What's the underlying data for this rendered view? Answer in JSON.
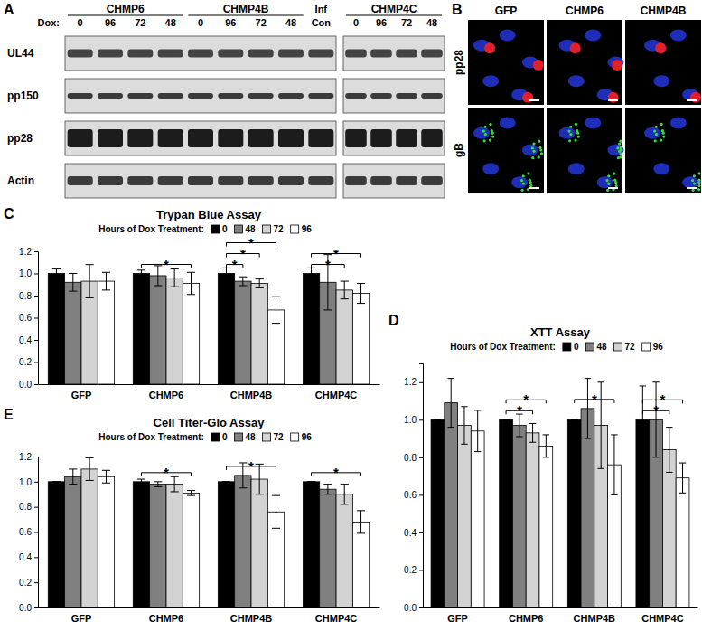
{
  "blot": {
    "panel": "A",
    "dox_label": "Dox:",
    "groups": [
      {
        "name": "CHMP6",
        "lanes": [
          "0",
          "96",
          "72",
          "48"
        ]
      },
      {
        "name": "CHMP4B",
        "lanes": [
          "0",
          "96",
          "72",
          "48"
        ]
      }
    ],
    "inf_con": [
      "Inf",
      "Con"
    ],
    "right_group": {
      "name": "CHMP4C",
      "lanes": [
        "0",
        "96",
        "72",
        "48"
      ]
    },
    "rows": [
      "UL44",
      "pp150",
      "pp28",
      "Actin"
    ]
  },
  "micrographs": {
    "panel": "B",
    "columns": [
      "GFP",
      "CHMP6",
      "CHMP4B"
    ],
    "rows": [
      "pp28",
      "gB"
    ]
  },
  "chart_data": [
    {
      "type": "bar",
      "panel": "C",
      "title": "Trypan Blue Assay",
      "legend_title": "Hours of Dox Treatment:",
      "legend": "top",
      "categories": [
        "GFP",
        "CHMP6",
        "CHMP4B",
        "CHMP4C"
      ],
      "series": [
        {
          "name": "0",
          "color": "#000000",
          "values": [
            1.0,
            1.0,
            1.0,
            1.0
          ],
          "errors": [
            0.04,
            0.03,
            0.05,
            0.05
          ]
        },
        {
          "name": "48",
          "color": "#808080",
          "values": [
            0.92,
            0.98,
            0.93,
            0.92
          ],
          "errors": [
            0.08,
            0.09,
            0.04,
            0.25
          ]
        },
        {
          "name": "72",
          "color": "#d3d3d3",
          "values": [
            0.93,
            0.96,
            0.91,
            0.85
          ],
          "errors": [
            0.15,
            0.08,
            0.04,
            0.08
          ]
        },
        {
          "name": "96",
          "color": "#ffffff",
          "values": [
            0.93,
            0.91,
            0.67,
            0.82
          ],
          "errors": [
            0.08,
            0.1,
            0.12,
            0.09
          ]
        }
      ],
      "ylim": [
        0,
        1.2
      ],
      "yticks": [
        {
          "value": 0,
          "label": "0.0"
        },
        {
          "value": 0.2,
          "label": "0.2"
        },
        {
          "value": 0.4,
          "label": "0.4"
        },
        {
          "value": 0.6,
          "label": "0.6"
        },
        {
          "value": 0.8,
          "label": "0.8"
        },
        {
          "value": 1,
          "label": "1.0"
        },
        {
          "value": 1.2,
          "label": "1.2"
        }
      ],
      "significance": [
        {
          "category": "CHMP6",
          "from": "0",
          "to": "96",
          "label": "*"
        },
        {
          "category": "CHMP4B",
          "from": "0",
          "to": "48",
          "label": "*"
        },
        {
          "category": "CHMP4B",
          "from": "0",
          "to": "72",
          "label": "*"
        },
        {
          "category": "CHMP4B",
          "from": "0",
          "to": "96",
          "label": "*"
        },
        {
          "category": "CHMP4C",
          "from": "0",
          "to": "72",
          "label": "*"
        },
        {
          "category": "CHMP4C",
          "from": "0",
          "to": "96",
          "label": "*"
        }
      ],
      "grid": false
    },
    {
      "type": "bar",
      "panel": "D",
      "title": "XTT Assay",
      "legend_title": "Hours of Dox Treatment:",
      "legend": "top",
      "categories": [
        "GFP",
        "CHMP6",
        "CHMP4B",
        "CHMP4C"
      ],
      "series": [
        {
          "name": "0",
          "color": "#000000",
          "values": [
            1.0,
            1.0,
            1.0,
            1.0
          ],
          "errors": [
            0.0,
            0.0,
            0.0,
            0.18
          ]
        },
        {
          "name": "48",
          "color": "#808080",
          "values": [
            1.09,
            0.97,
            1.06,
            1.0
          ],
          "errors": [
            0.13,
            0.06,
            0.16,
            0.2
          ]
        },
        {
          "name": "72",
          "color": "#d3d3d3",
          "values": [
            0.97,
            0.93,
            0.97,
            0.84
          ],
          "errors": [
            0.1,
            0.05,
            0.23,
            0.12
          ]
        },
        {
          "name": "96",
          "color": "#ffffff",
          "values": [
            0.94,
            0.86,
            0.76,
            0.69
          ],
          "errors": [
            0.11,
            0.06,
            0.16,
            0.08
          ]
        }
      ],
      "ylim": [
        0,
        1.3
      ],
      "yticks": [
        {
          "value": 0,
          "label": "0.0"
        },
        {
          "value": 0.2,
          "label": "0.2"
        },
        {
          "value": 0.4,
          "label": "0.4"
        },
        {
          "value": 0.6,
          "label": "0.6"
        },
        {
          "value": 0.8,
          "label": "0.8"
        },
        {
          "value": 1,
          "label": "1.0"
        },
        {
          "value": 1.2,
          "label": "1.2"
        }
      ],
      "significance": [
        {
          "category": "CHMP6",
          "from": "0",
          "to": "72",
          "label": "*"
        },
        {
          "category": "CHMP6",
          "from": "0",
          "to": "96",
          "label": "*"
        },
        {
          "category": "CHMP4B",
          "from": "0",
          "to": "96",
          "label": "*"
        },
        {
          "category": "CHMP4C",
          "from": "0",
          "to": "72",
          "label": "*"
        },
        {
          "category": "CHMP4C",
          "from": "0",
          "to": "96",
          "label": "*"
        }
      ],
      "grid": false
    },
    {
      "type": "bar",
      "panel": "E",
      "title": "Cell Titer-Glo Assay",
      "legend_title": "Hours of Dox Treatment:",
      "legend": "top",
      "categories": [
        "GFP",
        "CHMP6",
        "CHMP4B",
        "CHMP4C"
      ],
      "series": [
        {
          "name": "0",
          "color": "#000000",
          "values": [
            1.0,
            1.0,
            1.0,
            1.0
          ],
          "errors": [
            0.0,
            0.02,
            0.0,
            0.0
          ]
        },
        {
          "name": "48",
          "color": "#808080",
          "values": [
            1.04,
            0.98,
            1.05,
            0.94
          ],
          "errors": [
            0.06,
            0.02,
            0.1,
            0.04
          ]
        },
        {
          "name": "72",
          "color": "#d3d3d3",
          "values": [
            1.1,
            0.98,
            1.02,
            0.9
          ],
          "errors": [
            0.09,
            0.06,
            0.12,
            0.08
          ]
        },
        {
          "name": "96",
          "color": "#ffffff",
          "values": [
            1.04,
            0.91,
            0.76,
            0.68
          ],
          "errors": [
            0.05,
            0.02,
            0.13,
            0.09
          ]
        }
      ],
      "ylim": [
        0,
        1.2
      ],
      "yticks": [
        {
          "value": 0,
          "label": "0.0"
        },
        {
          "value": 0.2,
          "label": "0.2"
        },
        {
          "value": 0.4,
          "label": "0.4"
        },
        {
          "value": 0.6,
          "label": "0.6"
        },
        {
          "value": 0.8,
          "label": "0.8"
        },
        {
          "value": 1,
          "label": "1.0"
        },
        {
          "value": 1.2,
          "label": "1.2"
        }
      ],
      "significance": [
        {
          "category": "CHMP6",
          "from": "0",
          "to": "96",
          "label": "*"
        },
        {
          "category": "CHMP4B",
          "from": "0",
          "to": "96",
          "label": "*"
        },
        {
          "category": "CHMP4C",
          "from": "0",
          "to": "96",
          "label": "*"
        }
      ],
      "grid": false
    }
  ]
}
